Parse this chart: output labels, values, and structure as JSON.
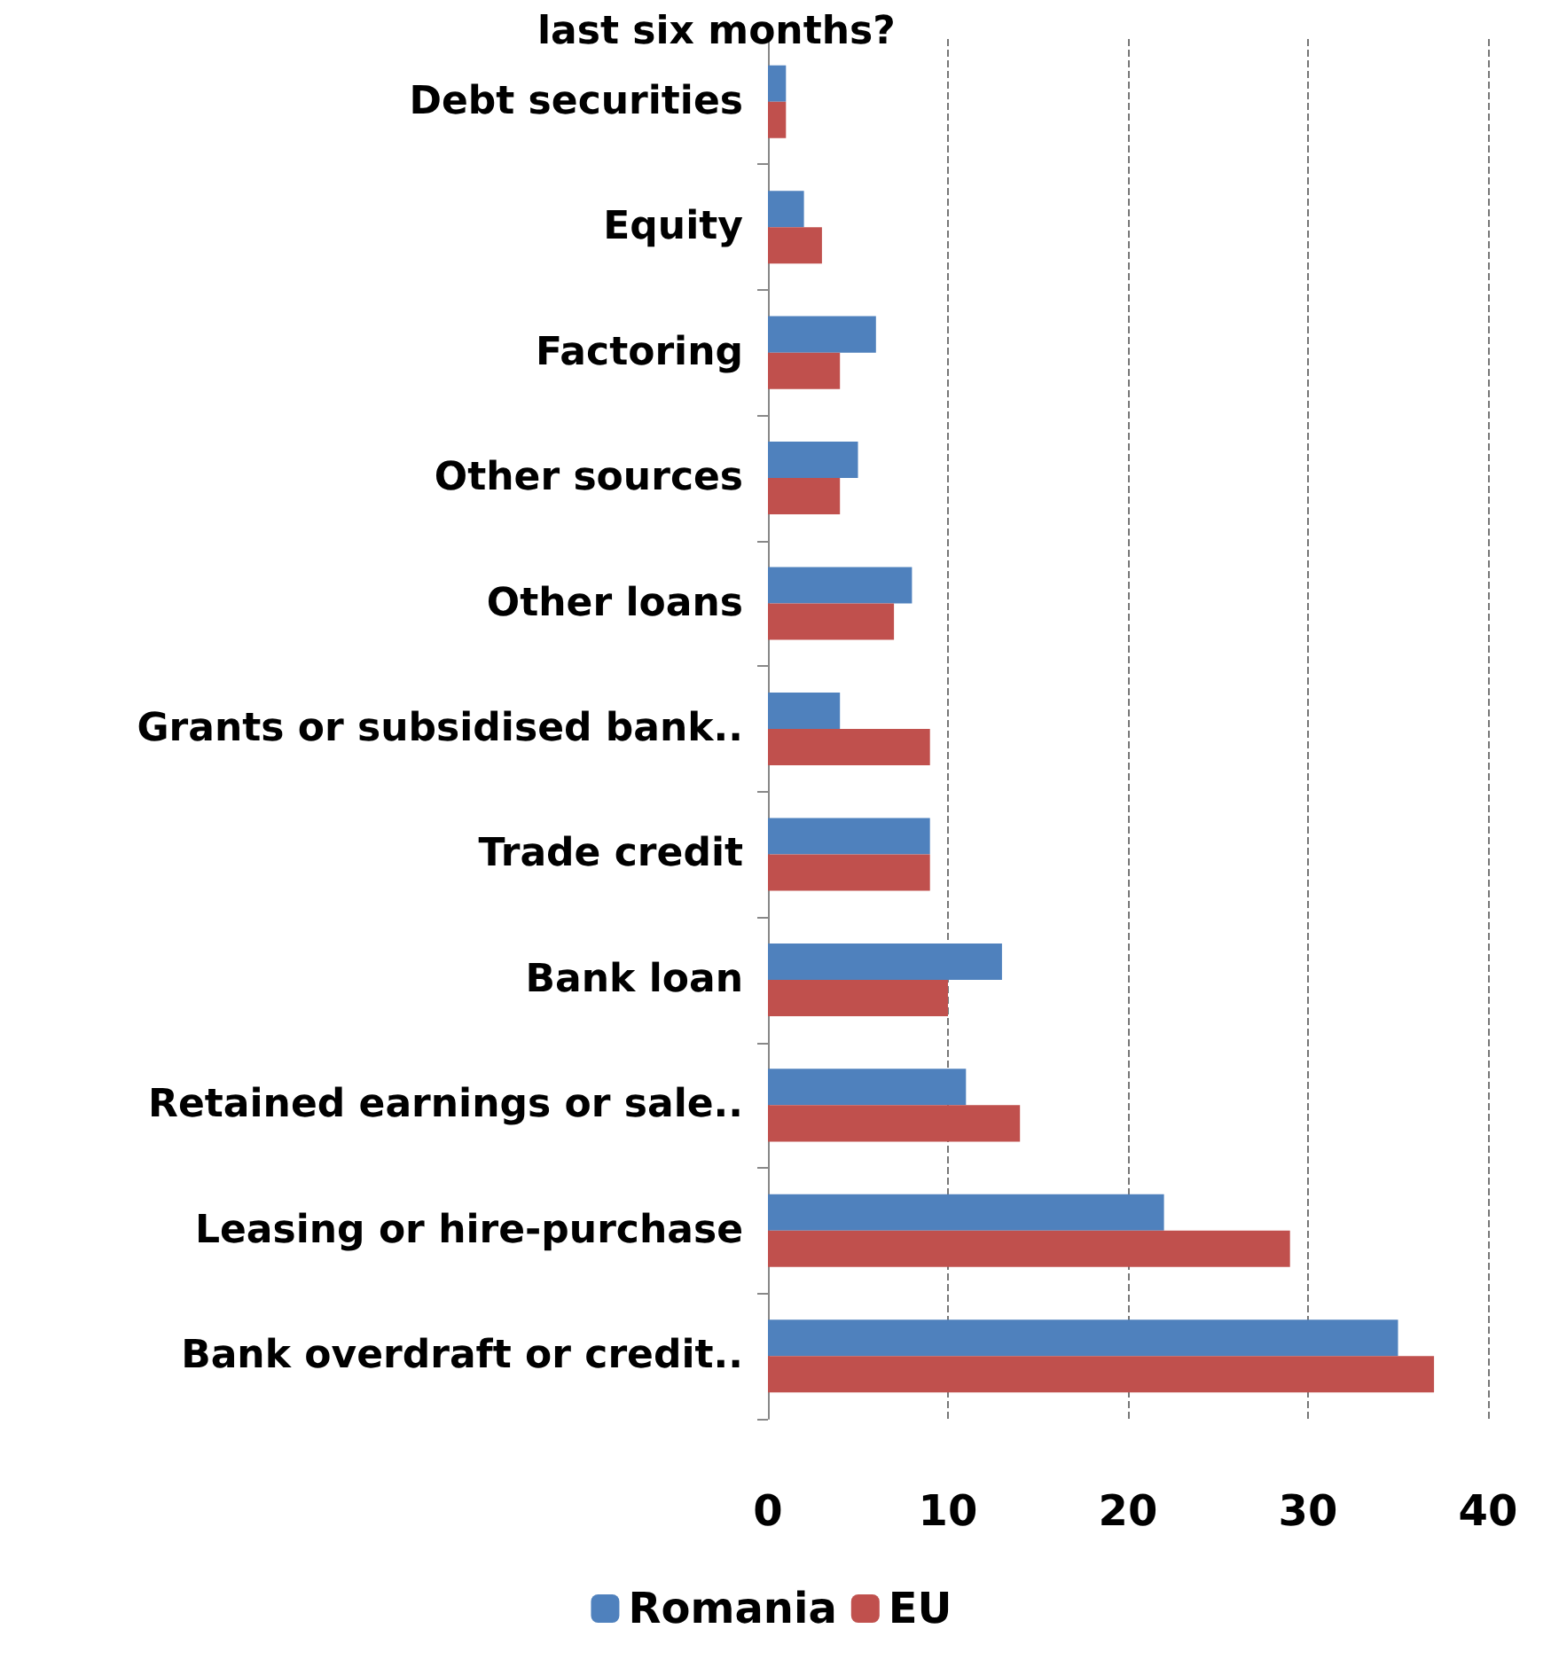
{
  "chart_data": {
    "type": "bar",
    "orientation": "horizontal",
    "title": "last six months?",
    "categories": [
      "Debt securities",
      "Equity",
      "Factoring",
      "Other sources",
      "Other loans",
      "Grants or subsidised bank..",
      "Trade credit",
      "Bank loan",
      "Retained earnings or sale..",
      "Leasing or hire-purchase",
      "Bank overdraft or credit.."
    ],
    "series": [
      {
        "name": "Romania",
        "color": "#4f81bd",
        "values": [
          1,
          2,
          6,
          5,
          8,
          4,
          9,
          13,
          11,
          22,
          35
        ]
      },
      {
        "name": "EU",
        "color": "#c0504d",
        "values": [
          1,
          3,
          4,
          4,
          7,
          9,
          9,
          10,
          14,
          29,
          37
        ]
      }
    ],
    "xlim": [
      0,
      40
    ],
    "xticks": [
      0,
      10,
      20,
      30,
      40
    ],
    "grid": "x",
    "legend": "bottom"
  }
}
